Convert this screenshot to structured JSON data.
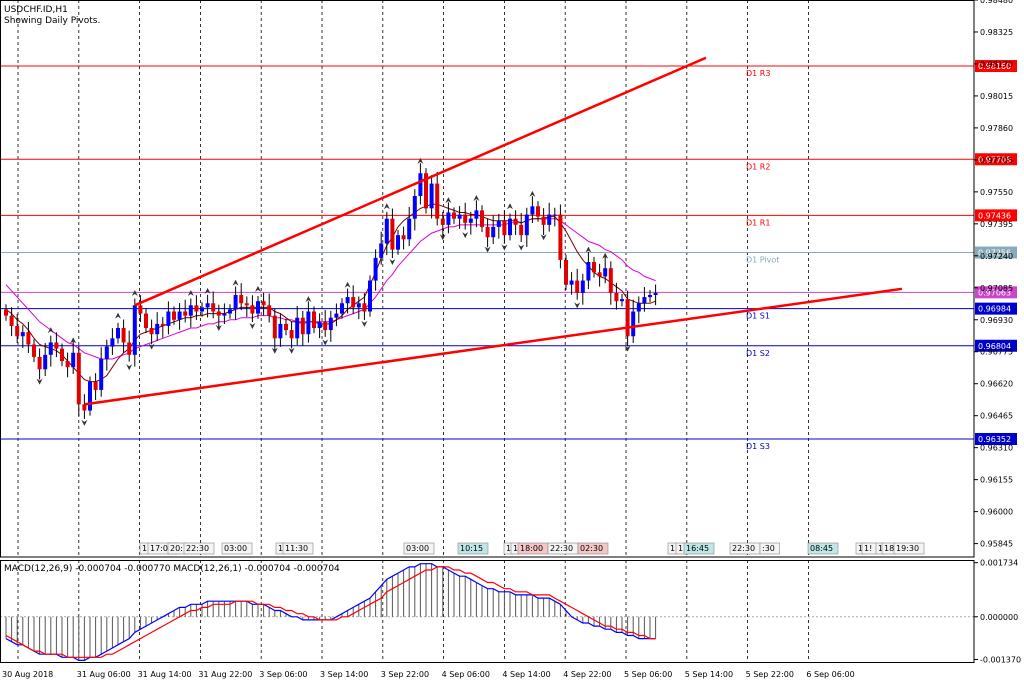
{
  "title": "USDCHF.ID,H1",
  "subtitle": "Showing Daily Pivots.",
  "colors": {
    "bull": "#0000ff",
    "bear": "#e00000",
    "resistance": "#ff0000",
    "support": "#0000cc",
    "pivot": "#88aabb",
    "ma_fast": "#7a0000",
    "ma_slow": "#dd00dd",
    "macd_line": "#0000ff",
    "signal_line": "#ff0000"
  },
  "price_axis": {
    "min": 0.9578,
    "max": 0.9848,
    "ticks": [
      "0.98480",
      "0.98325",
      "0.98170",
      "0.98015",
      "0.97860",
      "0.97705",
      "0.97550",
      "0.97395",
      "0.97240",
      "0.97085",
      "0.96930",
      "0.96775",
      "0.96620",
      "0.96465",
      "0.96310",
      "0.96155",
      "0.96000",
      "0.95845"
    ]
  },
  "time_axis": [
    "30 Aug 2018",
    "31 Aug 06:00",
    "31 Aug 14:00",
    "31 Aug 22:00",
    "3 Sep 06:00",
    "3 Sep 14:00",
    "3 Sep 22:00",
    "4 Sep 06:00",
    "4 Sep 14:00",
    "4 Sep 22:00",
    "5 Sep 06:00",
    "5 Sep 14:00",
    "5 Sep 22:00",
    "6 Sep 06:00"
  ],
  "pivots": [
    {
      "name": "D1 R3",
      "value": "0.98160",
      "color": "#ff0000"
    },
    {
      "name": "D1 R2",
      "value": "0.97708",
      "color": "#ff0000"
    },
    {
      "name": "D1 R1",
      "value": "0.97436",
      "color": "#ff0000"
    },
    {
      "name": "D1 Pivot",
      "value": "0.97256",
      "color": "#88aabb"
    },
    {
      "name": "",
      "value": "0.97063",
      "color": "#cc44cc"
    },
    {
      "name": "D1 S1",
      "value": "0.96984",
      "color": "#0000cc"
    },
    {
      "name": "D1 S2",
      "value": "0.96804",
      "color": "#0000cc"
    },
    {
      "name": "D1 S3",
      "value": "0.96352",
      "color": "#0000cc"
    }
  ],
  "session_marks": [
    "1",
    "17:00",
    "20:",
    "22:30",
    "03:00",
    "1",
    "11:30",
    "03:00",
    "10:15",
    "1",
    "1",
    "18:00",
    "22:30",
    "02:30",
    "1",
    "1",
    "16:45",
    "22:30",
    ":30",
    "08:45",
    "1",
    "1!",
    "1",
    "18",
    "19:30"
  ],
  "macd": {
    "label": "MACD(12,26,9) -0.000704 -0.000770 MACD(12,26,1) -0.000704 -0.000704",
    "axis_ticks": [
      "0.001734",
      "0.000000",
      "-0.001370"
    ],
    "min": -0.00145,
    "max": 0.00182
  },
  "chart_data": {
    "type": "candlestick",
    "title": "USDCHF.ID,H1",
    "subtitle": "Showing Daily Pivots.",
    "ylim": [
      0.9578,
      0.9848
    ],
    "close": [
      0.9695,
      0.969,
      0.9685,
      0.9687,
      0.9681,
      0.9675,
      0.9669,
      0.9676,
      0.9682,
      0.9679,
      0.9673,
      0.967,
      0.9677,
      0.9652,
      0.9649,
      0.9663,
      0.9659,
      0.9674,
      0.968,
      0.9684,
      0.9689,
      0.9682,
      0.9676,
      0.97,
      0.9696,
      0.9689,
      0.9686,
      0.9691,
      0.969,
      0.9697,
      0.9693,
      0.9697,
      0.9695,
      0.97,
      0.9697,
      0.9699,
      0.9701,
      0.9697,
      0.9695,
      0.9696,
      0.9698,
      0.9705,
      0.9701,
      0.97,
      0.9696,
      0.9702,
      0.97,
      0.9695,
      0.9684,
      0.9691,
      0.9688,
      0.9684,
      0.9694,
      0.9686,
      0.9697,
      0.9689,
      0.9692,
      0.9688,
      0.9694,
      0.9696,
      0.9701,
      0.9704,
      0.9699,
      0.9701,
      0.9697,
      0.9712,
      0.9723,
      0.973,
      0.9742,
      0.9727,
      0.9734,
      0.9732,
      0.9742,
      0.9753,
      0.9764,
      0.9747,
      0.9759,
      0.9742,
      0.9739,
      0.9745,
      0.9742,
      0.9744,
      0.974,
      0.9742,
      0.9746,
      0.9738,
      0.9733,
      0.9738,
      0.9741,
      0.9734,
      0.9742,
      0.9739,
      0.9734,
      0.9744,
      0.9748,
      0.9743,
      0.9739,
      0.9744,
      0.9744,
      0.9722,
      0.971,
      0.9712,
      0.9706,
      0.9712,
      0.9721,
      0.9716,
      0.9714,
      0.9718,
      0.9706,
      0.9702,
      0.9703,
      0.9685,
      0.9697,
      0.9701,
      0.9704,
      0.9705,
      0.9706
    ],
    "ma_fast": [
      0.9698,
      0.9696,
      0.9693,
      0.9691,
      0.9688,
      0.9684,
      0.9681,
      0.968,
      0.9679,
      0.9678,
      0.9676,
      0.9673,
      0.967,
      0.9667,
      0.9664,
      0.9663,
      0.9663,
      0.9664,
      0.9666,
      0.967,
      0.9674,
      0.9677,
      0.9679,
      0.9683,
      0.9686,
      0.9687,
      0.9688,
      0.9689,
      0.969,
      0.9691,
      0.9692,
      0.9693,
      0.9694,
      0.9694,
      0.9695,
      0.9695,
      0.9696,
      0.9696,
      0.9696,
      0.9696,
      0.9697,
      0.9698,
      0.9699,
      0.9699,
      0.9699,
      0.9699,
      0.9699,
      0.9699,
      0.9697,
      0.9696,
      0.9694,
      0.9692,
      0.9692,
      0.9691,
      0.9692,
      0.9692,
      0.9691,
      0.9691,
      0.9691,
      0.9693,
      0.9695,
      0.9698,
      0.97,
      0.9702,
      0.9704,
      0.971,
      0.9716,
      0.9723,
      0.9729,
      0.9733,
      0.9738,
      0.9741,
      0.9743,
      0.9745,
      0.9747,
      0.9748,
      0.9749,
      0.9749,
      0.9748,
      0.9747,
      0.9746,
      0.9745,
      0.9745,
      0.9744,
      0.9744,
      0.9743,
      0.9742,
      0.9741,
      0.9741,
      0.9741,
      0.9741,
      0.9741,
      0.974,
      0.9741,
      0.9742,
      0.9742,
      0.9742,
      0.9743,
      0.9743,
      0.974,
      0.9736,
      0.9731,
      0.9726,
      0.9722,
      0.9719,
      0.9716,
      0.9714,
      0.9713,
      0.9711,
      0.9709,
      0.9707,
      0.9703,
      0.9702,
      0.9701,
      0.9701,
      0.9701,
      0.9702
    ],
    "ma_slow": [
      0.971,
      0.9707,
      0.9704,
      0.9701,
      0.9698,
      0.9695,
      0.9692,
      0.969,
      0.9688,
      0.9686,
      0.9684,
      0.9682,
      0.9681,
      0.9679,
      0.9677,
      0.9676,
      0.9675,
      0.9674,
      0.9674,
      0.9674,
      0.9675,
      0.9676,
      0.9677,
      0.9679,
      0.968,
      0.9681,
      0.9682,
      0.9683,
      0.9684,
      0.9685,
      0.9686,
      0.9687,
      0.9688,
      0.9689,
      0.9689,
      0.969,
      0.9691,
      0.9691,
      0.9692,
      0.9692,
      0.9693,
      0.9693,
      0.9694,
      0.9694,
      0.9694,
      0.9695,
      0.9695,
      0.9695,
      0.9694,
      0.9694,
      0.9693,
      0.9693,
      0.9692,
      0.9692,
      0.9692,
      0.9692,
      0.9692,
      0.9692,
      0.9692,
      0.9693,
      0.9694,
      0.9695,
      0.9696,
      0.9697,
      0.9698,
      0.9701,
      0.9704,
      0.9708,
      0.9712,
      0.9715,
      0.9719,
      0.9722,
      0.9725,
      0.9728,
      0.9731,
      0.9733,
      0.9735,
      0.9736,
      0.9737,
      0.9738,
      0.9738,
      0.9739,
      0.9739,
      0.9739,
      0.9739,
      0.9739,
      0.9739,
      0.9739,
      0.9739,
      0.9739,
      0.974,
      0.974,
      0.974,
      0.9741,
      0.9742,
      0.9742,
      0.9742,
      0.9742,
      0.9742,
      0.9741,
      0.9739,
      0.9737,
      0.9735,
      0.9733,
      0.9731,
      0.973,
      0.9729,
      0.9727,
      0.9726,
      0.9724,
      0.9722,
      0.9719,
      0.9717,
      0.9716,
      0.9714,
      0.9713,
      0.9712
    ],
    "trendlines": [
      {
        "from": [
          23,
          0.97
        ],
        "to": [
          125,
          0.982
        ]
      },
      {
        "from": [
          14,
          0.9652
        ],
        "to": [
          160,
          0.9708
        ]
      }
    ],
    "macd_series": {
      "histogram": [
        -0.0007,
        -0.0008,
        -0.0009,
        -0.0009,
        -0.001,
        -0.0011,
        -0.0012,
        -0.0012,
        -0.0012,
        -0.0012,
        -0.0013,
        -0.0013,
        -0.0013,
        -0.0014,
        -0.0014,
        -0.0013,
        -0.0013,
        -0.0012,
        -0.0011,
        -0.001,
        -0.0009,
        -0.0008,
        -0.0007,
        -0.0005,
        -0.0004,
        -0.0003,
        -0.0002,
        -0.0001,
        0.0,
        0.0001,
        0.0002,
        0.0003,
        0.0003,
        0.0004,
        0.0004,
        0.0004,
        0.0005,
        0.0005,
        0.0005,
        0.0005,
        0.0005,
        0.0005,
        0.0005,
        0.0005,
        0.0004,
        0.0004,
        0.0004,
        0.0003,
        0.0002,
        0.0002,
        0.0001,
        0.0,
        0.0,
        -0.0001,
        -0.0001,
        -0.0001,
        -0.0001,
        -0.0001,
        -0.0001,
        0.0,
        0.0001,
        0.0002,
        0.0003,
        0.0004,
        0.0005,
        0.0006,
        0.0008,
        0.001,
        0.0012,
        0.0013,
        0.0014,
        0.0015,
        0.0016,
        0.0016,
        0.0017,
        0.0017,
        0.0017,
        0.0016,
        0.0016,
        0.0015,
        0.0014,
        0.0013,
        0.0013,
        0.0012,
        0.0011,
        0.001,
        0.0009,
        0.0009,
        0.0008,
        0.0008,
        0.0008,
        0.0007,
        0.0007,
        0.0007,
        0.0007,
        0.0006,
        0.0006,
        0.0006,
        0.0005,
        0.0004,
        0.0002,
        0.0,
        -0.0001,
        -0.0002,
        -0.0002,
        -0.0003,
        -0.0003,
        -0.0004,
        -0.0004,
        -0.0005,
        -0.0005,
        -0.0006,
        -0.0006,
        -0.0007,
        -0.0007,
        -0.0007,
        -0.0007
      ],
      "signal": [
        -0.0006,
        -0.0007,
        -0.0008,
        -0.0009,
        -0.001,
        -0.0011,
        -0.0011,
        -0.0012,
        -0.0012,
        -0.0012,
        -0.0012,
        -0.0013,
        -0.0013,
        -0.0013,
        -0.0013,
        -0.0013,
        -0.0013,
        -0.0013,
        -0.0012,
        -0.0012,
        -0.0011,
        -0.001,
        -0.0009,
        -0.0008,
        -0.0007,
        -0.0006,
        -0.0005,
        -0.0004,
        -0.0003,
        -0.0002,
        -0.0001,
        0.0,
        0.0001,
        0.0002,
        0.0002,
        0.0003,
        0.0003,
        0.0004,
        0.0004,
        0.0004,
        0.0004,
        0.0005,
        0.0005,
        0.0005,
        0.0005,
        0.0004,
        0.0004,
        0.0004,
        0.0003,
        0.0003,
        0.0002,
        0.0002,
        0.0001,
        0.0001,
        0.0,
        0.0,
        -0.0001,
        -0.0001,
        -0.0001,
        -0.0001,
        0.0,
        0.0,
        0.0001,
        0.0002,
        0.0003,
        0.0004,
        0.0005,
        0.0006,
        0.0008,
        0.0009,
        0.001,
        0.0011,
        0.0012,
        0.0013,
        0.0014,
        0.0015,
        0.0015,
        0.0016,
        0.0016,
        0.0016,
        0.0015,
        0.0015,
        0.0014,
        0.0014,
        0.0013,
        0.0012,
        0.0011,
        0.0011,
        0.001,
        0.0009,
        0.0009,
        0.0008,
        0.0008,
        0.0008,
        0.0007,
        0.0007,
        0.0007,
        0.0007,
        0.0006,
        0.0005,
        0.0004,
        0.0003,
        0.0002,
        0.0001,
        0.0,
        -0.0001,
        -0.0002,
        -0.0003,
        -0.0003,
        -0.0004,
        -0.0004,
        -0.0005,
        -0.0005,
        -0.0006,
        -0.0006,
        -0.0007,
        -0.0007
      ]
    }
  }
}
